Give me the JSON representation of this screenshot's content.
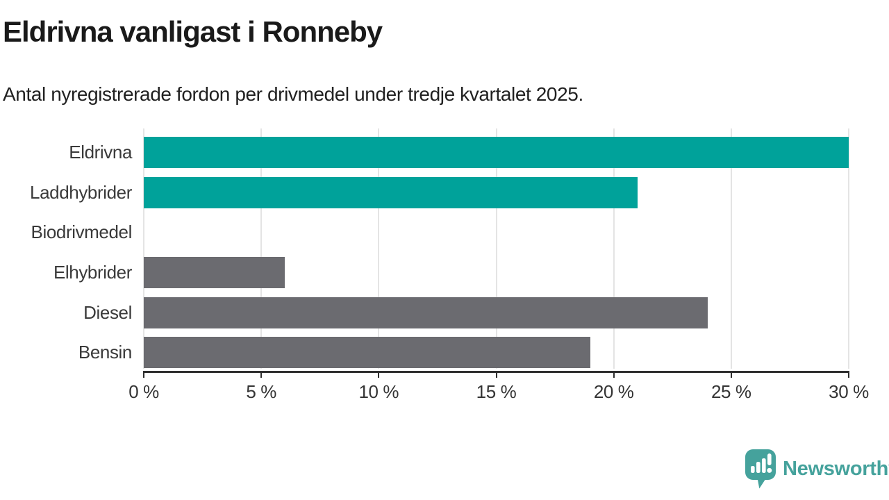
{
  "title": "Eldrivna vanligast i Ronneby",
  "subtitle": "Antal nyregistrerade fordon per drivmedel under tredje kvartalet 2025.",
  "chart_data": {
    "type": "bar",
    "orientation": "horizontal",
    "title": "Eldrivna vanligast i Ronneby",
    "subtitle": "Antal nyregistrerade fordon per drivmedel under tredje kvartalet 2025.",
    "categories": [
      "Eldrivna",
      "Laddhybrider",
      "Biodrivmedel",
      "Elhybrider",
      "Diesel",
      "Bensin"
    ],
    "values": [
      30,
      21,
      0,
      6,
      24,
      19
    ],
    "unit": "%",
    "xlim": [
      0,
      30
    ],
    "x_tick_values": [
      0,
      5,
      10,
      15,
      20,
      25,
      30
    ],
    "x_tick_labels": [
      "0 %",
      "5 %",
      "10 %",
      "15 %",
      "20 %",
      "25 %",
      "30 %"
    ],
    "grid": "vertical",
    "legend": "none",
    "bar_colors": [
      "#00a29a",
      "#00a29a",
      "#6b6b70",
      "#6b6b70",
      "#6b6b70",
      "#6b6b70"
    ],
    "highlight_color": "#00a29a",
    "default_color": "#6b6b70",
    "highlighted_categories": [
      "Eldrivna",
      "Laddhybrider"
    ]
  },
  "branding": {
    "label": "Newsworthy",
    "color": "#45a29c",
    "icon": "newsworthy-logo-icon"
  }
}
